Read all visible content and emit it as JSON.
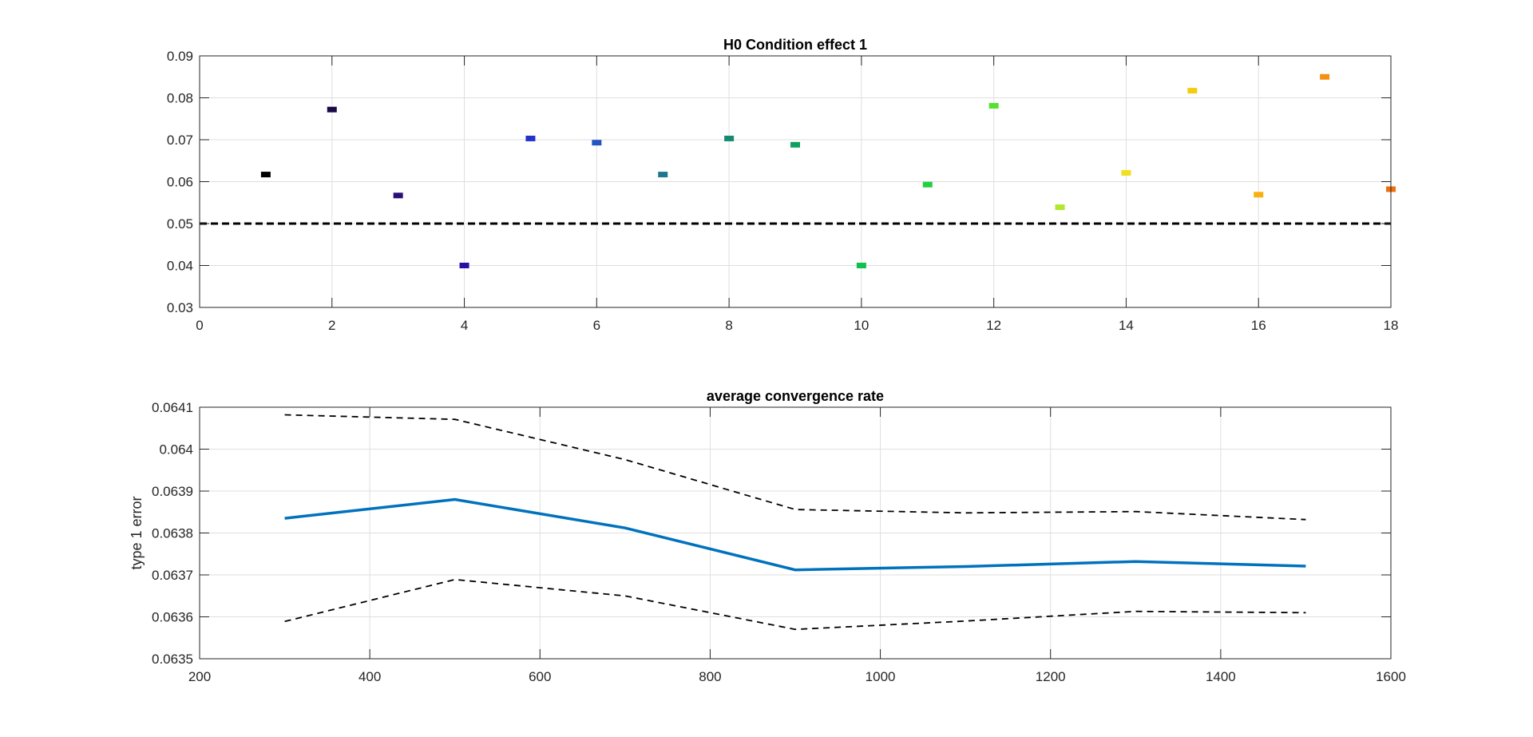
{
  "chart_data": [
    {
      "type": "scatter",
      "title": "H0 Condition effect 1",
      "xlabel": "",
      "ylabel": "",
      "xlim": [
        0,
        18
      ],
      "ylim": [
        0.03,
        0.09
      ],
      "xticks": [
        "0",
        "2",
        "4",
        "6",
        "8",
        "10",
        "12",
        "14",
        "16",
        "18"
      ],
      "yticks": [
        "0.03",
        "0.04",
        "0.05",
        "0.06",
        "0.07",
        "0.08",
        "0.09"
      ],
      "grid": true,
      "reference_line": {
        "y": 0.05,
        "style": "dashed",
        "color": "#000000"
      },
      "marker": "horizontal-dash",
      "points": [
        {
          "x": 1,
          "y": 0.0617,
          "color": "#000000"
        },
        {
          "x": 2,
          "y": 0.0772,
          "color": "#1a0a45"
        },
        {
          "x": 3,
          "y": 0.0567,
          "color": "#2a0f75"
        },
        {
          "x": 4,
          "y": 0.04,
          "color": "#2a0fa5"
        },
        {
          "x": 5,
          "y": 0.0703,
          "color": "#2233c8"
        },
        {
          "x": 6,
          "y": 0.0693,
          "color": "#2255c0"
        },
        {
          "x": 7,
          "y": 0.0617,
          "color": "#1f7590"
        },
        {
          "x": 8,
          "y": 0.0703,
          "color": "#158a6e"
        },
        {
          "x": 9,
          "y": 0.0688,
          "color": "#0fa060"
        },
        {
          "x": 10,
          "y": 0.04,
          "color": "#10c050"
        },
        {
          "x": 11,
          "y": 0.0593,
          "color": "#22d040"
        },
        {
          "x": 12,
          "y": 0.0781,
          "color": "#55e030"
        },
        {
          "x": 13,
          "y": 0.0539,
          "color": "#b0e830"
        },
        {
          "x": 14,
          "y": 0.0621,
          "color": "#f0e020"
        },
        {
          "x": 15,
          "y": 0.0817,
          "color": "#f5cc10"
        },
        {
          "x": 16,
          "y": 0.0569,
          "color": "#f8b010"
        },
        {
          "x": 17,
          "y": 0.085,
          "color": "#f59010"
        },
        {
          "x": 18,
          "y": 0.0582,
          "color": "#f07010"
        }
      ]
    },
    {
      "type": "line",
      "title": "average convergence rate",
      "xlabel": "",
      "ylabel": "type 1 error",
      "xlim": [
        200,
        1600
      ],
      "ylim": [
        0.0635,
        0.0641
      ],
      "xticks": [
        "200",
        "400",
        "600",
        "800",
        "1000",
        "1200",
        "1400",
        "1600"
      ],
      "yticks": [
        "0.0635",
        "0.0636",
        "0.0637",
        "0.0638",
        "0.0639",
        "0.064",
        "0.0641"
      ],
      "grid": true,
      "x": [
        300,
        500,
        700,
        900,
        1100,
        1300,
        1500
      ],
      "series": [
        {
          "values": [
            0.063835,
            0.06388,
            0.063812,
            0.063712,
            0.06372,
            0.063732,
            0.063721
          ],
          "color": "#0072bd",
          "style": "solid"
        },
        {
          "values": [
            0.064082,
            0.064071,
            0.063975,
            0.063856,
            0.063848,
            0.063851,
            0.063832
          ],
          "color": "#000000",
          "style": "dashed"
        },
        {
          "values": [
            0.063589,
            0.063689,
            0.06365,
            0.06357,
            0.06359,
            0.063613,
            0.06361
          ],
          "color": "#000000",
          "style": "dashed"
        }
      ]
    }
  ]
}
